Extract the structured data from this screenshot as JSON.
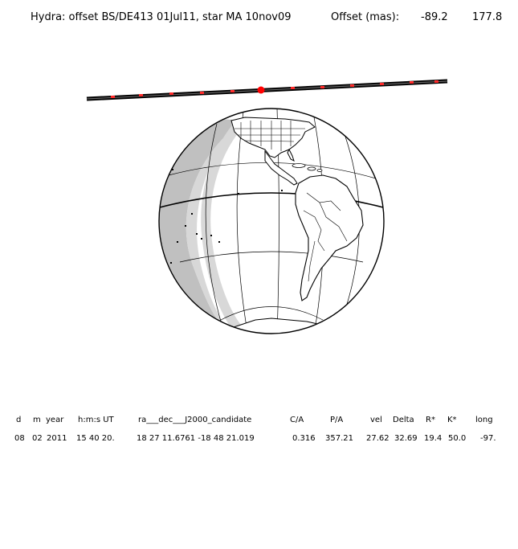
{
  "title": {
    "object": "Hydra: offset BS/DE413 01Jul11, star MA 10nov09",
    "offset_label": "Offset (mas):",
    "offset_ra": "-89.2",
    "offset_dec": "177.8"
  },
  "table": {
    "headers": [
      "d",
      "m",
      "year",
      "h:m:s UT",
      "ra___dec___J2000_candidate",
      "C/A",
      "P/A",
      "vel",
      "Delta",
      "R*",
      "K*",
      "long"
    ],
    "values": [
      "08",
      "02",
      "2011",
      "15 40 20.",
      "18 27 11.6761 -18 48 21.019",
      "0.316",
      "357.21",
      "27.62",
      "32.69",
      "19.4",
      "50.0",
      "-97."
    ]
  },
  "colors": {
    "path": "#333333",
    "marker": "#ff0000",
    "night": "#c0c0c0",
    "twilight": "#d8d8d8",
    "outline": "#000000"
  }
}
